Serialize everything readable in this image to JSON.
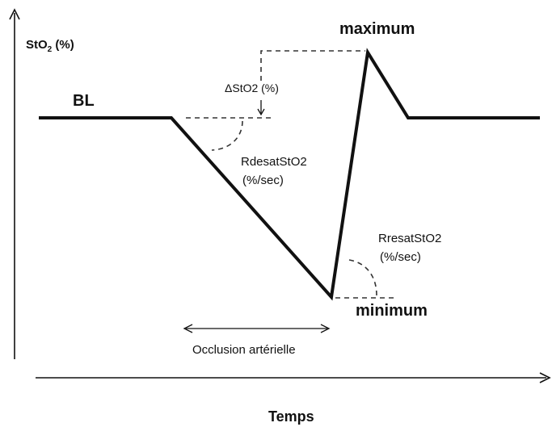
{
  "labels": {
    "y_axis": "StO",
    "y_axis_sub": "2",
    "y_axis_unit": " (%)",
    "x_axis": "Temps",
    "baseline": "BL",
    "maximum": "maximum",
    "minimum": "minimum",
    "delta": "ΔStO2 (%)",
    "rdesat_line1": "RdesatStO2",
    "rdesat_line2": "(%/sec)",
    "rresat_line1": "RresatStO2",
    "rresat_line2": "(%/sec)",
    "occlusion": "Occlusion artérielle"
  }
}
